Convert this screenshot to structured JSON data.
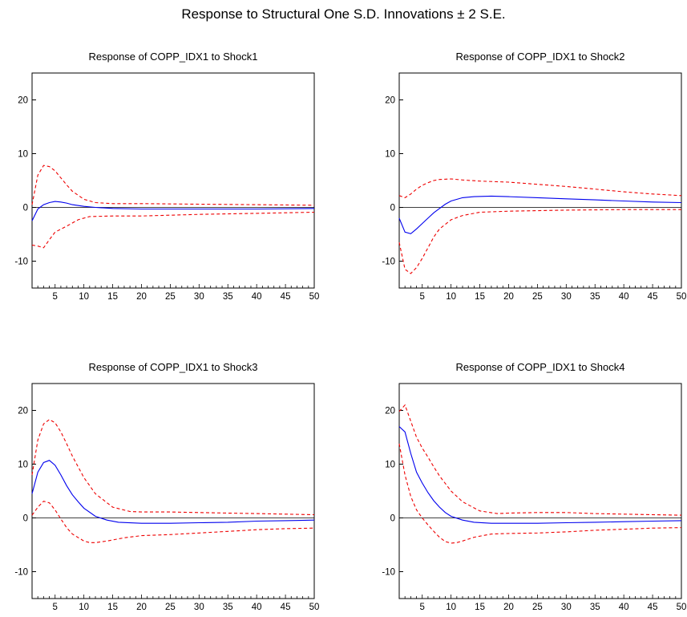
{
  "figure_title": "Response to Structural One S.D. Innovations ± 2 S.E.",
  "colors": {
    "response": "#0000ee",
    "confidence_band": "#ee0000",
    "zero_line": "#000000",
    "frame": "#000000"
  },
  "chart_data": [
    {
      "type": "line",
      "title": "Response of COPP_IDX1 to Shock1",
      "xlabel": "",
      "ylabel": "",
      "xlim": [
        1,
        50
      ],
      "ylim": [
        -15,
        25
      ],
      "x_ticks": [
        5,
        10,
        15,
        20,
        25,
        30,
        35,
        40,
        45,
        50
      ],
      "y_ticks": [
        -10,
        0,
        10,
        20
      ],
      "grid": false,
      "series": [
        {
          "style": "solid-blue",
          "points": [
            [
              1,
              -2.5
            ],
            [
              2,
              -0.3
            ],
            [
              3,
              0.5
            ],
            [
              4,
              0.9
            ],
            [
              5,
              1.1
            ],
            [
              6,
              1.0
            ],
            [
              7,
              0.8
            ],
            [
              8,
              0.5
            ],
            [
              10,
              0.2
            ],
            [
              12,
              0.0
            ],
            [
              15,
              -0.2
            ],
            [
              20,
              -0.3
            ],
            [
              30,
              -0.3
            ],
            [
              40,
              -0.3
            ],
            [
              50,
              -0.2
            ]
          ]
        },
        {
          "style": "dashed-red",
          "points": [
            [
              1,
              0.5
            ],
            [
              2,
              6.0
            ],
            [
              3,
              7.8
            ],
            [
              4,
              7.6
            ],
            [
              5,
              6.8
            ],
            [
              6,
              5.5
            ],
            [
              7,
              4.2
            ],
            [
              8,
              3.0
            ],
            [
              10,
              1.5
            ],
            [
              12,
              0.9
            ],
            [
              15,
              0.7
            ],
            [
              20,
              0.7
            ],
            [
              30,
              0.6
            ],
            [
              40,
              0.5
            ],
            [
              50,
              0.4
            ]
          ]
        },
        {
          "style": "dashed-red",
          "points": [
            [
              1,
              -7.0
            ],
            [
              2,
              -7.2
            ],
            [
              3,
              -7.5
            ],
            [
              4,
              -6.0
            ],
            [
              5,
              -4.6
            ],
            [
              7,
              -3.5
            ],
            [
              9,
              -2.3
            ],
            [
              11,
              -1.7
            ],
            [
              15,
              -1.6
            ],
            [
              20,
              -1.6
            ],
            [
              30,
              -1.3
            ],
            [
              40,
              -1.1
            ],
            [
              50,
              -0.9
            ]
          ]
        }
      ]
    },
    {
      "type": "line",
      "title": "Response of COPP_IDX1 to Shock2",
      "xlabel": "",
      "ylabel": "",
      "xlim": [
        1,
        50
      ],
      "ylim": [
        -15,
        25
      ],
      "x_ticks": [
        5,
        10,
        15,
        20,
        25,
        30,
        35,
        40,
        45,
        50
      ],
      "y_ticks": [
        -10,
        0,
        10,
        20
      ],
      "grid": false,
      "series": [
        {
          "style": "solid-blue",
          "points": [
            [
              1,
              -2.0
            ],
            [
              2,
              -4.6
            ],
            [
              3,
              -4.9
            ],
            [
              4,
              -4.0
            ],
            [
              5,
              -3.0
            ],
            [
              6,
              -2.0
            ],
            [
              7,
              -1.0
            ],
            [
              8,
              -0.2
            ],
            [
              9,
              0.6
            ],
            [
              10,
              1.2
            ],
            [
              12,
              1.8
            ],
            [
              14,
              2.0
            ],
            [
              17,
              2.1
            ],
            [
              20,
              2.0
            ],
            [
              25,
              1.8
            ],
            [
              30,
              1.6
            ],
            [
              35,
              1.4
            ],
            [
              40,
              1.2
            ],
            [
              45,
              1.0
            ],
            [
              50,
              0.9
            ]
          ]
        },
        {
          "style": "dashed-red",
          "points": [
            [
              1,
              2.2
            ],
            [
              2,
              1.8
            ],
            [
              3,
              2.5
            ],
            [
              4,
              3.4
            ],
            [
              5,
              4.1
            ],
            [
              6,
              4.6
            ],
            [
              7,
              5.0
            ],
            [
              8,
              5.2
            ],
            [
              10,
              5.3
            ],
            [
              12,
              5.1
            ],
            [
              15,
              4.9
            ],
            [
              20,
              4.7
            ],
            [
              25,
              4.3
            ],
            [
              30,
              3.9
            ],
            [
              35,
              3.4
            ],
            [
              40,
              2.9
            ],
            [
              45,
              2.5
            ],
            [
              50,
              2.2
            ]
          ]
        },
        {
          "style": "dashed-red",
          "points": [
            [
              1,
              -6.5
            ],
            [
              2,
              -11.5
            ],
            [
              3,
              -12.3
            ],
            [
              4,
              -11.2
            ],
            [
              5,
              -9.5
            ],
            [
              6,
              -7.5
            ],
            [
              7,
              -5.5
            ],
            [
              8,
              -4.0
            ],
            [
              10,
              -2.3
            ],
            [
              12,
              -1.5
            ],
            [
              15,
              -0.9
            ],
            [
              20,
              -0.7
            ],
            [
              30,
              -0.5
            ],
            [
              40,
              -0.4
            ],
            [
              50,
              -0.4
            ]
          ]
        }
      ]
    },
    {
      "type": "line",
      "title": "Response of COPP_IDX1 to Shock3",
      "xlabel": "",
      "ylabel": "",
      "xlim": [
        1,
        50
      ],
      "ylim": [
        -15,
        25
      ],
      "x_ticks": [
        5,
        10,
        15,
        20,
        25,
        30,
        35,
        40,
        45,
        50
      ],
      "y_ticks": [
        -10,
        0,
        10,
        20
      ],
      "grid": false,
      "series": [
        {
          "style": "solid-blue",
          "points": [
            [
              1,
              4.5
            ],
            [
              2,
              8.5
            ],
            [
              3,
              10.3
            ],
            [
              4,
              10.7
            ],
            [
              5,
              9.8
            ],
            [
              6,
              8.0
            ],
            [
              7,
              6.0
            ],
            [
              8,
              4.3
            ],
            [
              9,
              3.0
            ],
            [
              10,
              1.8
            ],
            [
              12,
              0.3
            ],
            [
              14,
              -0.4
            ],
            [
              16,
              -0.8
            ],
            [
              20,
              -1.0
            ],
            [
              25,
              -1.0
            ],
            [
              30,
              -0.9
            ],
            [
              35,
              -0.8
            ],
            [
              40,
              -0.6
            ],
            [
              45,
              -0.5
            ],
            [
              50,
              -0.4
            ]
          ]
        },
        {
          "style": "dashed-red",
          "points": [
            [
              1,
              8.0
            ],
            [
              2,
              14.5
            ],
            [
              3,
              17.5
            ],
            [
              4,
              18.3
            ],
            [
              5,
              17.7
            ],
            [
              6,
              16.0
            ],
            [
              7,
              13.8
            ],
            [
              8,
              11.5
            ],
            [
              10,
              7.5
            ],
            [
              12,
              4.5
            ],
            [
              15,
              2.0
            ],
            [
              18,
              1.2
            ],
            [
              20,
              1.1
            ],
            [
              25,
              1.1
            ],
            [
              30,
              1.0
            ],
            [
              35,
              0.9
            ],
            [
              40,
              0.8
            ],
            [
              45,
              0.7
            ],
            [
              50,
              0.6
            ]
          ]
        },
        {
          "style": "dashed-red",
          "points": [
            [
              1,
              0.5
            ],
            [
              2,
              2.0
            ],
            [
              3,
              3.1
            ],
            [
              4,
              2.8
            ],
            [
              5,
              1.5
            ],
            [
              6,
              -0.2
            ],
            [
              7,
              -1.8
            ],
            [
              8,
              -3.0
            ],
            [
              10,
              -4.3
            ],
            [
              11,
              -4.6
            ],
            [
              12,
              -4.6
            ],
            [
              14,
              -4.3
            ],
            [
              17,
              -3.7
            ],
            [
              20,
              -3.3
            ],
            [
              25,
              -3.1
            ],
            [
              30,
              -2.8
            ],
            [
              35,
              -2.5
            ],
            [
              40,
              -2.2
            ],
            [
              45,
              -2.0
            ],
            [
              50,
              -1.9
            ]
          ]
        }
      ]
    },
    {
      "type": "line",
      "title": "Response of COPP_IDX1 to Shock4",
      "xlabel": "",
      "ylabel": "",
      "xlim": [
        1,
        50
      ],
      "ylim": [
        -15,
        25
      ],
      "x_ticks": [
        5,
        10,
        15,
        20,
        25,
        30,
        35,
        40,
        45,
        50
      ],
      "y_ticks": [
        -10,
        0,
        10,
        20
      ],
      "grid": false,
      "series": [
        {
          "style": "solid-blue",
          "points": [
            [
              1,
              17.0
            ],
            [
              2,
              16.0
            ],
            [
              3,
              12.0
            ],
            [
              4,
              8.5
            ],
            [
              5,
              6.5
            ],
            [
              6,
              4.7
            ],
            [
              7,
              3.2
            ],
            [
              8,
              2.0
            ],
            [
              9,
              1.0
            ],
            [
              10,
              0.3
            ],
            [
              12,
              -0.4
            ],
            [
              14,
              -0.8
            ],
            [
              17,
              -1.0
            ],
            [
              20,
              -1.0
            ],
            [
              25,
              -1.0
            ],
            [
              30,
              -0.9
            ],
            [
              35,
              -0.8
            ],
            [
              40,
              -0.7
            ],
            [
              45,
              -0.6
            ],
            [
              50,
              -0.5
            ]
          ]
        },
        {
          "style": "dashed-red",
          "points": [
            [
              1,
              19.8
            ],
            [
              2,
              21.0
            ],
            [
              3,
              18.0
            ],
            [
              4,
              15.0
            ],
            [
              5,
              13.0
            ],
            [
              6,
              11.3
            ],
            [
              7,
              9.5
            ],
            [
              8,
              7.8
            ],
            [
              10,
              5.0
            ],
            [
              12,
              3.0
            ],
            [
              15,
              1.3
            ],
            [
              18,
              0.8
            ],
            [
              20,
              0.9
            ],
            [
              25,
              1.0
            ],
            [
              30,
              1.0
            ],
            [
              35,
              0.8
            ],
            [
              40,
              0.7
            ],
            [
              45,
              0.6
            ],
            [
              50,
              0.5
            ]
          ]
        },
        {
          "style": "dashed-red",
          "points": [
            [
              1,
              13.8
            ],
            [
              2,
              8.0
            ],
            [
              3,
              4.0
            ],
            [
              4,
              1.5
            ],
            [
              5,
              0.0
            ],
            [
              6,
              -1.3
            ],
            [
              7,
              -2.5
            ],
            [
              8,
              -3.6
            ],
            [
              9,
              -4.4
            ],
            [
              10,
              -4.7
            ],
            [
              11,
              -4.6
            ],
            [
              12,
              -4.3
            ],
            [
              14,
              -3.6
            ],
            [
              17,
              -3.0
            ],
            [
              20,
              -2.9
            ],
            [
              25,
              -2.8
            ],
            [
              30,
              -2.6
            ],
            [
              35,
              -2.3
            ],
            [
              40,
              -2.1
            ],
            [
              45,
              -1.9
            ],
            [
              50,
              -1.8
            ]
          ]
        }
      ]
    }
  ]
}
